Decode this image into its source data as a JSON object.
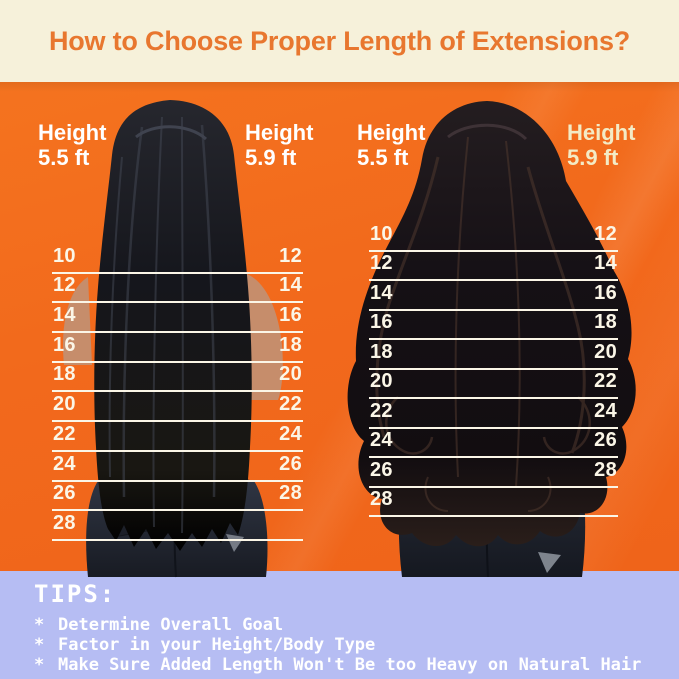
{
  "title": "How to Choose Proper Length of Extensions?",
  "figures": [
    {
      "hair_type": "straight",
      "labels": {
        "left": {
          "title": "Height",
          "value": "5.5 ft"
        },
        "right": {
          "title": "Height",
          "value": "5.9 ft"
        }
      },
      "scale_left": [
        "10",
        "12",
        "14",
        "16",
        "18",
        "20",
        "22",
        "24",
        "26",
        "28"
      ],
      "scale_right": [
        "12",
        "14",
        "16",
        "18",
        "20",
        "22",
        "24",
        "26",
        "28"
      ]
    },
    {
      "hair_type": "wavy",
      "labels": {
        "left": {
          "title": "Height",
          "value": "5.5 ft"
        },
        "right": {
          "title": "Height",
          "value": "5.9 ft"
        }
      },
      "scale_left": [
        "10",
        "12",
        "14",
        "16",
        "18",
        "20",
        "22",
        "24",
        "26",
        "28"
      ],
      "scale_right": [
        "12",
        "14",
        "16",
        "18",
        "20",
        "22",
        "24",
        "26",
        "28"
      ]
    }
  ],
  "tips": {
    "heading": "TIPS:",
    "bullet": "*",
    "items": [
      "Determine Overall Goal",
      "Factor in your Height/Body Type",
      "Make Sure Added Length Won't Be too Heavy on Natural Hair"
    ]
  },
  "colors": {
    "header_bg": "#F6F1DA",
    "title": "#E8772F",
    "canvas": "#F2691D",
    "tips_bg": "#B6BDF3",
    "scale_ink": "#FBF6E7",
    "label_white": "#FFFFFF",
    "label_cream": "#F3EBC6"
  }
}
